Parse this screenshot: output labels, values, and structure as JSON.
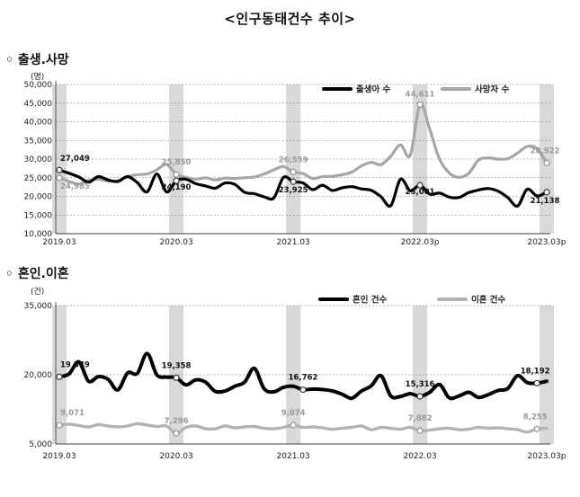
{
  "page_title": "<인구동태건수 추이>",
  "sections": [
    {
      "title": "◦ 출생.사망"
    },
    {
      "title": "◦ 혼인.이혼"
    }
  ],
  "chart_data": [
    {
      "type": "line",
      "title": "출생.사망",
      "ylabel": "(명)",
      "ylim": [
        10000,
        50000
      ],
      "yticks": [
        10000,
        15000,
        20000,
        25000,
        30000,
        35000,
        40000,
        45000,
        50000
      ],
      "ytick_labels": [
        "10,000",
        "15,000",
        "20,000",
        "25,000",
        "30,000",
        "35,000",
        "40,000",
        "45,000",
        "50,000"
      ],
      "x_labels": [
        "2019.03",
        "2020.03",
        "2021.03",
        "2022.03p",
        "2023.03p"
      ],
      "shaded_months": [
        "2019.03",
        "2020.03",
        "2021.03",
        "2022.03p",
        "2023.03p"
      ],
      "legend_position": "top-right",
      "series": [
        {
          "name": "출생아 수",
          "color": "#000000",
          "values": [
            27049,
            26200,
            25200,
            23800,
            25300,
            24400,
            24000,
            25300,
            23700,
            21200,
            26000,
            21200,
            24190,
            24600,
            23400,
            22800,
            22200,
            23600,
            23200,
            21100,
            20700,
            19900,
            19600,
            25100,
            23925,
            23600,
            21800,
            23000,
            21600,
            22300,
            22600,
            22000,
            21600,
            19900,
            17500,
            24600,
            21500,
            23001,
            20600,
            20900,
            19800,
            19700,
            21000,
            21700,
            22100,
            21400,
            19700,
            17400,
            21900,
            20100,
            21138
          ],
          "labels": [
            {
              "i": 0,
              "text": "27,049"
            },
            {
              "i": 12,
              "text": "24,190"
            },
            {
              "i": 24,
              "text": "23,925"
            },
            {
              "i": 37,
              "text": "23,001"
            },
            {
              "i": 50,
              "text": "21,138"
            }
          ]
        },
        {
          "name": "사망자 수",
          "color": "#a6a6a6",
          "values": [
            24985,
            24000,
            23300,
            24300,
            24600,
            24100,
            24200,
            25300,
            25800,
            26000,
            27100,
            28600,
            25850,
            25100,
            24600,
            25000,
            24400,
            24900,
            24800,
            25000,
            25200,
            26000,
            27100,
            28000,
            26559,
            26100,
            24800,
            25300,
            25400,
            25800,
            26500,
            28200,
            29100,
            28500,
            30800,
            33800,
            31000,
            44611,
            38000,
            30000,
            26300,
            25100,
            26200,
            29700,
            30300,
            30000,
            30100,
            31600,
            33400,
            32800,
            28922
          ],
          "labels": [
            {
              "i": 0,
              "text": "24,985"
            },
            {
              "i": 12,
              "text": "25,850"
            },
            {
              "i": 24,
              "text": "26,559"
            },
            {
              "i": 37,
              "text": "44,611"
            },
            {
              "i": 50,
              "text": "28,922"
            }
          ]
        }
      ]
    },
    {
      "type": "line",
      "title": "혼인.이혼",
      "ylabel": "(건)",
      "ylim": [
        5000,
        35000
      ],
      "yticks": [
        5000,
        20000,
        35000
      ],
      "ytick_labels": [
        "5,000",
        "20,000",
        "35,000"
      ],
      "x_labels": [
        "2019.03",
        "2020.03",
        "2021.03",
        "2022.03",
        "2023.03p"
      ],
      "shaded_months": [
        "2019.03",
        "2020.03",
        "2021.03",
        "2022.03",
        "2023.03p"
      ],
      "legend_position": "top-right",
      "series": [
        {
          "name": "혼인 건수",
          "color": "#000000",
          "values": [
            19549,
            20200,
            22800,
            18600,
            19600,
            19000,
            16700,
            20400,
            20300,
            24600,
            20000,
            19500,
            19358,
            17800,
            18900,
            18400,
            16400,
            16500,
            17500,
            18400,
            21400,
            17000,
            16300,
            17300,
            17500,
            16762,
            16900,
            16800,
            16500,
            15800,
            14900,
            16500,
            17600,
            19800,
            15400,
            15300,
            15900,
            15316,
            16200,
            17900,
            15000,
            15400,
            16200,
            15100,
            15700,
            16600,
            17000,
            19800,
            18300,
            18192,
            18600
          ],
          "labels": [
            {
              "i": 0,
              "text": "19,549"
            },
            {
              "i": 12,
              "text": "19,358"
            },
            {
              "i": 25,
              "text": "16,762"
            },
            {
              "i": 37,
              "text": "15,316"
            },
            {
              "i": 49,
              "text": "18,192"
            }
          ]
        },
        {
          "name": "이혼 건수",
          "color": "#b3b3b3",
          "values": [
            9071,
            9300,
            9000,
            8700,
            9200,
            8900,
            8700,
            8900,
            9400,
            9100,
            8800,
            8900,
            7296,
            8600,
            8900,
            8300,
            8300,
            8900,
            8500,
            8700,
            8800,
            8400,
            8300,
            8600,
            9074,
            8600,
            8700,
            8500,
            8200,
            8400,
            8600,
            8900,
            8100,
            8600,
            8400,
            8200,
            8600,
            7882,
            8000,
            8300,
            8400,
            8100,
            8200,
            8600,
            8400,
            8500,
            8300,
            8100,
            7600,
            8255,
            8400
          ],
          "labels": [
            {
              "i": 0,
              "text": "9,071"
            },
            {
              "i": 12,
              "text": "7,296"
            },
            {
              "i": 24,
              "text": "9,074"
            },
            {
              "i": 37,
              "text": "7,882"
            },
            {
              "i": 49,
              "text": "8,255"
            }
          ]
        }
      ]
    }
  ]
}
